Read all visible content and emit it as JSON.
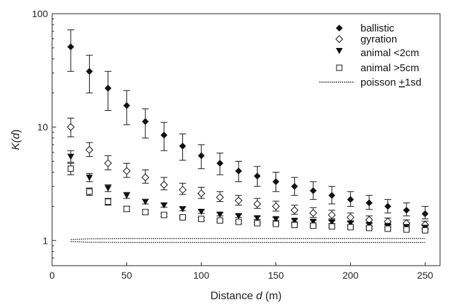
{
  "chart_data": {
    "type": "scatter",
    "title": "",
    "xlabel_prefix": "Distance ",
    "xlabel_var": "d",
    "xlabel_suffix": " (m)",
    "ylabel_prefix": "K(",
    "ylabel_var": "d",
    "ylabel_suffix": ")",
    "xlim": [
      0,
      260
    ],
    "ylim": [
      0.6,
      100
    ],
    "yscale": "log",
    "xticks": [
      0,
      50,
      100,
      150,
      200,
      250
    ],
    "yticks": [
      1,
      10,
      100
    ],
    "legend_position": "top-right",
    "x": [
      12.5,
      25,
      37.5,
      50,
      62.5,
      75,
      87.5,
      100,
      112.5,
      125,
      137.5,
      150,
      162.5,
      175,
      187.5,
      200,
      212.5,
      225,
      237.5,
      250
    ],
    "series": [
      {
        "name": "ballistic",
        "marker": "diamond-filled",
        "values": [
          51,
          31,
          22,
          15.5,
          11.2,
          8.5,
          6.8,
          5.6,
          4.8,
          4.1,
          3.7,
          3.3,
          3.0,
          2.75,
          2.5,
          2.3,
          2.15,
          2.0,
          1.85,
          1.72
        ],
        "err_low": [
          31,
          20,
          14,
          10.5,
          8.0,
          6.2,
          5.1,
          4.3,
          3.8,
          3.3,
          3.0,
          2.7,
          2.5,
          2.3,
          2.1,
          2.0,
          1.88,
          1.75,
          1.65,
          1.55
        ],
        "err_high": [
          72,
          43,
          31,
          21,
          14.5,
          11,
          8.7,
          7.0,
          5.9,
          5.0,
          4.5,
          4.0,
          3.6,
          3.3,
          3.0,
          2.7,
          2.5,
          2.3,
          2.15,
          2.0
        ]
      },
      {
        "name": "gyration",
        "marker": "diamond-open",
        "values": [
          10,
          6.3,
          4.8,
          4.1,
          3.6,
          3.1,
          2.8,
          2.6,
          2.4,
          2.25,
          2.1,
          2.0,
          1.85,
          1.75,
          1.68,
          1.6,
          1.52,
          1.47,
          1.42,
          1.38
        ],
        "err_low": [
          8.2,
          5.5,
          4.2,
          3.6,
          3.2,
          2.8,
          2.55,
          2.35,
          2.2,
          2.05,
          1.92,
          1.82,
          1.7,
          1.6,
          1.55,
          1.48,
          1.42,
          1.37,
          1.32,
          1.28
        ],
        "err_high": [
          12,
          7.3,
          5.6,
          4.8,
          4.2,
          3.6,
          3.2,
          2.95,
          2.7,
          2.5,
          2.35,
          2.22,
          2.05,
          1.95,
          1.85,
          1.75,
          1.65,
          1.58,
          1.52,
          1.48
        ]
      },
      {
        "name": "animal <2cm",
        "marker": "triangle-down-filled",
        "values": [
          5.5,
          3.6,
          2.9,
          2.5,
          2.2,
          2.05,
          1.9,
          1.8,
          1.7,
          1.65,
          1.58,
          1.55,
          1.5,
          1.47,
          1.45,
          1.42,
          1.38,
          1.35,
          1.32,
          1.3
        ],
        "err_low": [
          4.9,
          3.3,
          2.7,
          2.35,
          2.1,
          1.97,
          1.83,
          1.74,
          1.65,
          1.6,
          1.53,
          1.5,
          1.46,
          1.43,
          1.41,
          1.38,
          1.34,
          1.31,
          1.28,
          1.26
        ],
        "err_high": [
          6.2,
          3.9,
          3.1,
          2.65,
          2.3,
          2.13,
          1.97,
          1.86,
          1.75,
          1.7,
          1.63,
          1.6,
          1.54,
          1.51,
          1.49,
          1.46,
          1.42,
          1.39,
          1.36,
          1.34
        ]
      },
      {
        "name": "animal >5cm",
        "marker": "square-open",
        "values": [
          4.3,
          2.7,
          2.2,
          1.9,
          1.78,
          1.68,
          1.6,
          1.55,
          1.5,
          1.46,
          1.42,
          1.4,
          1.37,
          1.35,
          1.33,
          1.31,
          1.29,
          1.27,
          1.25,
          1.23
        ],
        "err_low": [
          3.8,
          2.5,
          2.05,
          1.8,
          1.7,
          1.62,
          1.55,
          1.5,
          1.46,
          1.42,
          1.39,
          1.37,
          1.34,
          1.32,
          1.3,
          1.28,
          1.26,
          1.24,
          1.22,
          1.2
        ],
        "err_high": [
          4.8,
          2.9,
          2.35,
          2.0,
          1.86,
          1.74,
          1.65,
          1.6,
          1.54,
          1.5,
          1.45,
          1.43,
          1.4,
          1.38,
          1.36,
          1.34,
          1.32,
          1.3,
          1.28,
          1.26
        ]
      }
    ],
    "envelope": {
      "name_prefix": "poisson ",
      "name_pm": "+",
      "name_suffix": "1sd",
      "style": "dotted",
      "x": [
        12.5,
        25,
        50,
        100,
        150,
        200,
        250
      ],
      "upper": [
        1.02,
        1.035,
        1.04,
        1.04,
        1.04,
        1.04,
        1.04
      ],
      "lower": [
        0.98,
        0.965,
        0.96,
        0.96,
        0.96,
        0.96,
        0.96
      ]
    }
  }
}
